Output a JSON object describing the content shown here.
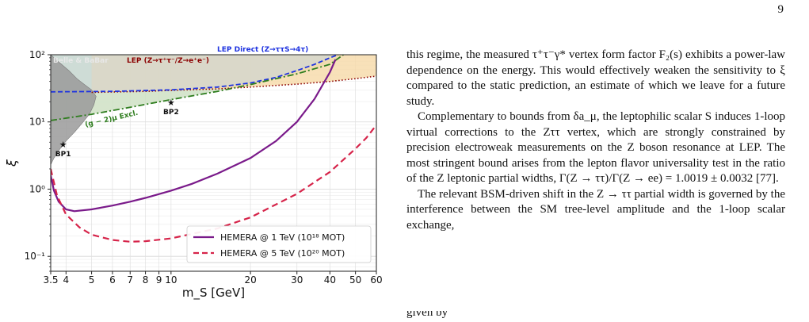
{
  "page_number": "9",
  "paragraphs": [
    "this regime, the measured τ⁺τ⁻γ* vertex form factor F₂(s) exhibits a power-law dependence on the energy. This would effectively weaken the sensitivity to ξ compared to the static prediction, an estimate of which we leave for a future study.",
    "Complementary to bounds from δa_μ, the leptophilic scalar S induces 1-loop virtual corrections to the Zττ vertex, which are strongly constrained by precision electroweak measurements on the Z boson resonance at LEP. The most stringent bound arises from the lepton flavor universality test in the ratio of the Z leptonic partial widths, Γ(Z → ττ)/Γ(Z → ee) = 1.0019 ± 0.0032 [77].",
    "The relevant BSM-driven shift in the Z → ττ partial width is governed by the interference between the SM tree-level amplitude and the 1-loop scalar exchange,"
  ],
  "last_line_fragment": "given by",
  "chart_data": {
    "type": "line",
    "xlabel": "m_S [GeV]",
    "ylabel": "ξ",
    "xscale": "log",
    "yscale": "log",
    "xlim": [
      3.5,
      60
    ],
    "ylim": [
      0.06,
      100
    ],
    "xticks": [
      3.5,
      4,
      5,
      6,
      7,
      8,
      9,
      10,
      20,
      30,
      40,
      50,
      60
    ],
    "xtick_labels": [
      "3.5",
      "4",
      "5",
      "6",
      "7",
      "8",
      "9",
      "10",
      "20",
      "30",
      "40",
      "50",
      "60"
    ],
    "yticks": [
      0.1,
      1,
      10,
      100
    ],
    "ytick_labels": [
      "10⁻¹",
      "10⁰",
      "10¹",
      "10²"
    ],
    "grid": true,
    "legend_position": "bottom-right",
    "colors": {
      "belle": "#9a9a9a",
      "lep": "#8b0000",
      "lep_fill": "#f6d9a8",
      "lep_direct": "#1e33e0",
      "gm2": "#2e7d1e",
      "gm2_fill": "#cfe0c4",
      "hemera1": "#7a1a8a",
      "hemera5": "#d6244a"
    },
    "regions": [
      {
        "name": "Belle & BaBar",
        "label": "Belle & BaBar"
      },
      {
        "name": "LEP",
        "label": "LEP (Z→τ⁺τ⁻/Z→e⁺e⁻)"
      },
      {
        "name": "LEP Direct",
        "label": "LEP Direct (Z→ττS→4τ)"
      },
      {
        "name": "(g−2)μ Excl.",
        "label": "(g − 2)μ Excl."
      }
    ],
    "benchmarks": [
      {
        "label": "BP1",
        "x": 3.9,
        "y": 4.5
      },
      {
        "label": "BP2",
        "x": 10,
        "y": 19
      }
    ],
    "series": [
      {
        "name": "HEMERA @ 1 TeV (10¹⁸ MOT)",
        "style": "solid",
        "x": [
          3.5,
          3.6,
          3.75,
          4.0,
          4.3,
          5,
          6,
          7,
          8,
          10,
          12,
          15,
          20,
          25,
          30,
          35,
          40,
          42
        ],
        "y": [
          1.6,
          0.95,
          0.65,
          0.5,
          0.47,
          0.5,
          0.57,
          0.65,
          0.74,
          0.95,
          1.2,
          1.7,
          2.9,
          5.2,
          10,
          22,
          55,
          85
        ]
      },
      {
        "name": "HEMERA @ 5 TeV (10²⁰ MOT)",
        "style": "dashed",
        "x": [
          3.5,
          3.7,
          4.0,
          4.5,
          5,
          6,
          7,
          8,
          10,
          15,
          20,
          30,
          40,
          50,
          55,
          60
        ],
        "y": [
          2.0,
          0.8,
          0.42,
          0.27,
          0.21,
          0.175,
          0.165,
          0.168,
          0.185,
          0.26,
          0.38,
          0.85,
          1.8,
          4.0,
          5.8,
          9.0
        ]
      }
    ],
    "boundaries": {
      "belle": {
        "x": [
          3.5,
          3.8,
          4.1,
          4.4,
          4.7,
          5.0,
          5.2,
          5.1,
          4.9,
          4.6,
          4.3,
          4.0,
          3.8,
          3.6,
          3.5
        ],
        "y": [
          100,
          75,
          58,
          44,
          36,
          30,
          24,
          18,
          13,
          9.5,
          7.0,
          5.2,
          4.0,
          2.9,
          2.3
        ]
      },
      "lep": {
        "x": [
          5,
          8,
          10,
          15,
          20,
          30,
          40,
          50,
          60
        ],
        "y": [
          27.5,
          28.5,
          29.5,
          31,
          33,
          36.5,
          40,
          44,
          48
        ]
      },
      "lep_direct": {
        "x": [
          3.5,
          6,
          10,
          15,
          20,
          25,
          30,
          35,
          40,
          43
        ],
        "y": [
          28,
          28.5,
          30,
          33,
          38,
          46,
          58,
          72,
          90,
          100
        ]
      },
      "gm2": {
        "x": [
          3.5,
          5,
          7,
          10,
          15,
          20,
          30,
          40,
          45
        ],
        "y": [
          10.5,
          13,
          16.5,
          21.5,
          28.5,
          36,
          52,
          72,
          100
        ]
      }
    }
  }
}
